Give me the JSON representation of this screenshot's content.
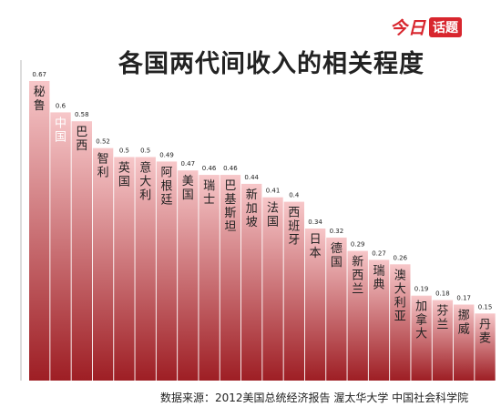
{
  "header": {
    "brand_main": "今日",
    "brand_tag": "话题",
    "title": "各国两代间收入的相关程度"
  },
  "footer": {
    "source": "数据来源：2012美国总统经济报告 渥太华大学 中国社会科学院"
  },
  "colors": {
    "bar_top": "#f7c7c9",
    "bar_bottom": "#9e1e24",
    "highlight_label": "#ffffff",
    "label": "#222222"
  },
  "chart_data": {
    "type": "bar",
    "title": "各国两代间收入的相关程度",
    "categories": [
      "秘鲁",
      "中国",
      "巴西",
      "智利",
      "英国",
      "意大利",
      "阿根廷",
      "美国",
      "瑞士",
      "巴基斯坦",
      "新加坡",
      "法国",
      "西班牙",
      "日本",
      "德国",
      "新西兰",
      "瑞典",
      "澳大利亚",
      "加拿大",
      "芬兰",
      "挪威",
      "丹麦"
    ],
    "values": [
      0.67,
      0.6,
      0.58,
      0.52,
      0.5,
      0.5,
      0.49,
      0.47,
      0.46,
      0.46,
      0.44,
      0.41,
      0.4,
      0.34,
      0.32,
      0.29,
      0.27,
      0.26,
      0.19,
      0.18,
      0.17,
      0.15
    ],
    "value_labels": [
      "0.67",
      "0.6",
      "0.58",
      "0.52",
      "0.5",
      "0.5",
      "0.49",
      "0.47",
      "0.46",
      "0.46",
      "0.44",
      "0.41",
      "0.4",
      "0.34",
      "0.32",
      "0.29",
      "0.27",
      "0.26",
      "0.19",
      "0.18",
      "0.17",
      "0.15"
    ],
    "highlight": "中国",
    "ylim": [
      0,
      0.67
    ],
    "grid": false,
    "legend": "none"
  }
}
